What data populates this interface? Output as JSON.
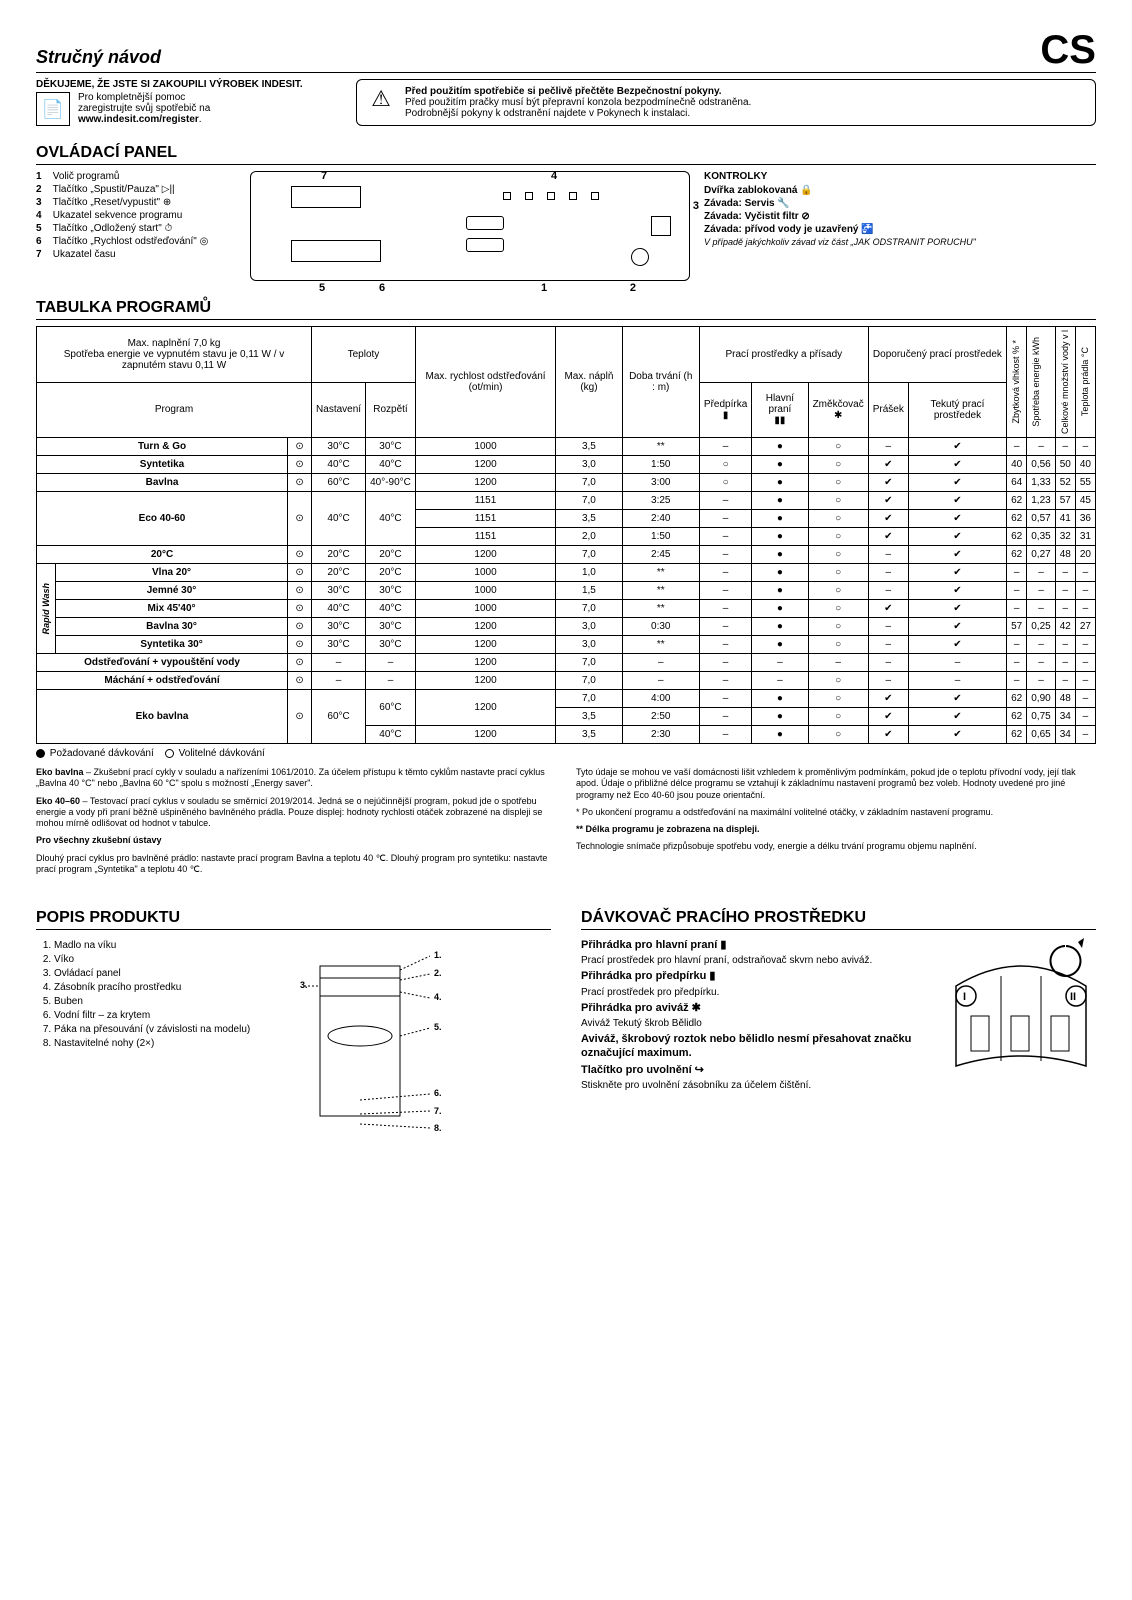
{
  "lang_code": "CS",
  "title": "Stručný návod",
  "intro": {
    "thanks": "DĚKUJEME, ŽE JSTE SI ZAKOUPILI VÝROBEK INDESIT.",
    "reg1": "Pro kompletnější pomoc",
    "reg2": "zaregistrujte svůj spotřebič na",
    "reg_url": "www.indesit.com/register",
    "warn_title": "Před použitím spotřebiče si pečlivě přečtěte Bezpečnostní pokyny.",
    "warn_line1": "Před použitím pračky musí být přepravní konzola bezpodmínečně odstraněna.",
    "warn_line2": "Podrobnější pokyny k odstranění najdete v Pokynech k instalaci."
  },
  "panel": {
    "heading": "OVLÁDACÍ PANEL",
    "items": [
      "Volič programů",
      "Tlačítko „Spustit/Pauza\" ▷||",
      "Tlačítko „Reset/vypustit\" ⊕",
      "Ukazatel sekvence programu",
      "Tlačítko „Odložený start\" ⏱",
      "Tlačítko „Rychlost odstřeďování\" ◎",
      "Ukazatel času"
    ],
    "indicators_heading": "KONTROLKY",
    "indicators": [
      "Dvířka zablokovaná 🔒",
      "Závada: Servis 🔧",
      "Závada: Vyčistit filtr ⊘",
      "Závada: přívod vody je uzavřený 🚰"
    ],
    "indicator_note": "V případě jakýchkoliv závad viz část „JAK ODSTRANIT PORUCHU\""
  },
  "table": {
    "heading": "TABULKA PROGRAMŮ",
    "caption_load": "Max. naplnění 7,0 kg",
    "caption_energy": "Spotřeba energie ve vypnutém stavu je 0,11 W / v zapnutém stavu 0,11 W",
    "col_program": "Program",
    "col_temps": "Teploty",
    "col_temp_set": "Nastavení",
    "col_temp_range": "Rozpětí",
    "col_spin": "Max. rychlost odstřeďování (ot/min)",
    "col_load": "Max. náplň (kg)",
    "col_dur": "Doba trvání (h : m)",
    "col_additives": "Prací prostředky a přísady",
    "col_prewash": "Předpírka",
    "col_main": "Hlavní praní",
    "col_softener": "Změkčovač",
    "col_recommended": "Doporučený prací prostředek",
    "col_powder": "Prášek",
    "col_liquid": "Tekutý prací prostředek",
    "col_humidity": "Zbytková vlhkost % *",
    "col_energy2": "Spotřeba energie kWh",
    "col_water": "Celkové množství vody v l",
    "col_temp_laundry": "Teplota prádla °C",
    "rapid_label": "Rapid Wash",
    "legend_required": "Požadované dávkování",
    "legend_optional": "Volitelné dávkování",
    "programs": [
      {
        "name": "Turn & Go",
        "bold": true,
        "tset": "30°C",
        "trange": "30°C",
        "spin": "1000",
        "load": "3,5",
        "dur": "**",
        "pre": "–",
        "main": "●",
        "soft": "○",
        "pow": "–",
        "liq": "✔",
        "hum": "–",
        "en": "–",
        "wat": "–",
        "tl": "–"
      },
      {
        "name": "Syntetika",
        "bold": true,
        "tset": "40°C",
        "trange": "40°C",
        "spin": "1200",
        "load": "3,0",
        "dur": "1:50",
        "pre": "○",
        "main": "●",
        "soft": "○",
        "pow": "✔",
        "liq": "✔",
        "hum": "40",
        "en": "0,56",
        "wat": "50",
        "tl": "40"
      },
      {
        "name": "Bavlna",
        "bold": true,
        "tset": "60°C",
        "trange": "40°-90°C",
        "spin": "1200",
        "load": "7,0",
        "dur": "3:00",
        "pre": "○",
        "main": "●",
        "soft": "○",
        "pow": "✔",
        "liq": "✔",
        "hum": "64",
        "en": "1,33",
        "wat": "52",
        "tl": "55"
      },
      {
        "name": "Eco 40-60",
        "bold": true,
        "rowspan": 3,
        "tset": "40°C",
        "trange": "40°C",
        "sub": [
          {
            "spin": "1151",
            "load": "7,0",
            "dur": "3:25",
            "pre": "–",
            "main": "●",
            "soft": "○",
            "pow": "✔",
            "liq": "✔",
            "hum": "62",
            "en": "1,23",
            "wat": "57",
            "tl": "45"
          },
          {
            "spin": "1151",
            "load": "3,5",
            "dur": "2:40",
            "pre": "–",
            "main": "●",
            "soft": "○",
            "pow": "✔",
            "liq": "✔",
            "hum": "62",
            "en": "0,57",
            "wat": "41",
            "tl": "36"
          },
          {
            "spin": "1151",
            "load": "2,0",
            "dur": "1:50",
            "pre": "–",
            "main": "●",
            "soft": "○",
            "pow": "✔",
            "liq": "✔",
            "hum": "62",
            "en": "0,35",
            "wat": "32",
            "tl": "31"
          }
        ]
      },
      {
        "name": "20°C",
        "bold": true,
        "tset": "20°C",
        "trange": "20°C",
        "spin": "1200",
        "load": "7,0",
        "dur": "2:45",
        "pre": "–",
        "main": "●",
        "soft": "○",
        "pow": "–",
        "liq": "✔",
        "hum": "62",
        "en": "0,27",
        "wat": "48",
        "tl": "20"
      },
      {
        "name": "Vlna 20°",
        "bold": true,
        "rapid": true,
        "tset": "20°C",
        "trange": "20°C",
        "spin": "1000",
        "load": "1,0",
        "dur": "**",
        "pre": "–",
        "main": "●",
        "soft": "○",
        "pow": "–",
        "liq": "✔",
        "hum": "–",
        "en": "–",
        "wat": "–",
        "tl": "–"
      },
      {
        "name": "Jemné 30°",
        "bold": true,
        "rapid": true,
        "tset": "30°C",
        "trange": "30°C",
        "spin": "1000",
        "load": "1,5",
        "dur": "**",
        "pre": "–",
        "main": "●",
        "soft": "○",
        "pow": "–",
        "liq": "✔",
        "hum": "–",
        "en": "–",
        "wat": "–",
        "tl": "–"
      },
      {
        "name": "Mix 45'40°",
        "bold": true,
        "rapid": true,
        "tset": "40°C",
        "trange": "40°C",
        "spin": "1000",
        "load": "7,0",
        "dur": "**",
        "pre": "–",
        "main": "●",
        "soft": "○",
        "pow": "✔",
        "liq": "✔",
        "hum": "–",
        "en": "–",
        "wat": "–",
        "tl": "–"
      },
      {
        "name": "Bavlna 30°",
        "bold": true,
        "rapid": true,
        "tset": "30°C",
        "trange": "30°C",
        "spin": "1200",
        "load": "3,0",
        "dur": "0:30",
        "pre": "–",
        "main": "●",
        "soft": "○",
        "pow": "–",
        "liq": "✔",
        "hum": "57",
        "en": "0,25",
        "wat": "42",
        "tl": "27"
      },
      {
        "name": "Syntetika 30°",
        "bold": true,
        "rapid": true,
        "tset": "30°C",
        "trange": "30°C",
        "spin": "1200",
        "load": "3,0",
        "dur": "**",
        "pre": "–",
        "main": "●",
        "soft": "○",
        "pow": "–",
        "liq": "✔",
        "hum": "–",
        "en": "–",
        "wat": "–",
        "tl": "–"
      },
      {
        "name": "Odstřeďování + vypouštění vody",
        "bold": true,
        "tset": "–",
        "trange": "–",
        "spin": "1200",
        "load": "7,0",
        "dur": "–",
        "pre": "–",
        "main": "–",
        "soft": "–",
        "pow": "–",
        "liq": "–",
        "hum": "–",
        "en": "–",
        "wat": "–",
        "tl": "–"
      },
      {
        "name": "Máchání + odstřeďování",
        "bold": true,
        "tset": "–",
        "trange": "–",
        "spin": "1200",
        "load": "7,0",
        "dur": "–",
        "pre": "–",
        "main": "–",
        "soft": "○",
        "pow": "–",
        "liq": "–",
        "hum": "–",
        "en": "–",
        "wat": "–",
        "tl": "–"
      },
      {
        "name": "Eko bavlna",
        "bold": true,
        "rowspan": 3,
        "tset": "60°C",
        "sub": [
          {
            "trange": "60°C",
            "spin": "1200",
            "load": "7,0",
            "dur": "4:00",
            "pre": "–",
            "main": "●",
            "soft": "○",
            "pow": "✔",
            "liq": "✔",
            "hum": "62",
            "en": "0,90",
            "wat": "48",
            "tl": "–"
          },
          {
            "trange": "60°C",
            "spin": "1200",
            "load": "3,5",
            "dur": "2:50",
            "pre": "–",
            "main": "●",
            "soft": "○",
            "pow": "✔",
            "liq": "✔",
            "hum": "62",
            "en": "0,75",
            "wat": "34",
            "tl": "–"
          },
          {
            "trange": "40°C",
            "spin": "1200",
            "load": "3,5",
            "dur": "2:30",
            "pre": "–",
            "main": "●",
            "soft": "○",
            "pow": "✔",
            "liq": "✔",
            "hum": "62",
            "en": "0,65",
            "wat": "34",
            "tl": "–"
          }
        ]
      }
    ]
  },
  "footnotes": {
    "left": [
      {
        "b": "Eko bavlna",
        "t": " – Zkušební prací cykly v souladu a nařízeními 1061/2010. Za účelem přístupu k těmto cyklům nastavte prací cyklus „Bavlna 40 °C\" nebo „Bavlna 60 °C\" spolu s možností „Energy saver\"."
      },
      {
        "b": "Eko 40–60",
        "t": " – Testovací prací cyklus v souladu se směrnicí 2019/2014. Jedná se o nejúčinnější program, pokud jde o spotřebu energie a vody při praní běžně ušpiněného bavlněného prádla. Pouze displej: hodnoty rychlosti otáček zobrazené na displeji se mohou mírně odlišovat od hodnot v tabulce."
      },
      {
        "b": "Pro všechny zkušební ústavy",
        "t": ""
      },
      {
        "b": "",
        "t": "Dlouhý prací cyklus pro bavlněné prádlo:  nastavte prací program Bavlna a teplotu 40 ℃. Dlouhý program pro syntetiku:  nastavte prací program „Syntetika\" a teplotu 40 ℃."
      }
    ],
    "right": [
      "Tyto údaje se mohou ve vaší domácnosti lišit vzhledem k proměnlivým podmínkám, pokud jde o teplotu přívodní vody, její tlak apod. Údaje o přibližné délce programu se vztahují k základnímu nastavení programů bez voleb. Hodnoty uvedené pro jiné programy než Eco 40-60 jsou pouze orientační.",
      "* Po ukončení programu a odstřeďování na maximální volitelné otáčky, v základním nastavení programu.",
      "** Délka programu je zobrazena na displeji.",
      "Technologie snímače přizpůsobuje spotřebu vody, energie a délku trvání programu objemu naplnění."
    ]
  },
  "product": {
    "heading": "POPIS PRODUKTU",
    "items": [
      "Madlo na víku",
      "Víko",
      "Ovládací panel",
      "Zásobník pracího prostředku",
      "Buben",
      "Vodní filtr – za krytem",
      "Páka na přesouvání (v závislosti na modelu)",
      "Nastavitelné nohy (2×)"
    ]
  },
  "dispenser": {
    "heading": "DÁVKOVAČ PRACÍHO PROSTŘEDKU",
    "comp1_title": "Přihrádka pro hlavní praní ▮",
    "comp1_text": "Prací prostředek pro hlavní praní, odstraňovač skvrn nebo aviváž.",
    "comp2_title": "Přihrádka pro předpírku ▮",
    "comp2_text": "Prací prostředek pro předpírku.",
    "comp3_title": "Přihrádka pro aviváž ✱",
    "comp3_text": "Aviváž Tekutý škrob Bělidlo",
    "comp_warning": "Aviváž, škrobový roztok nebo bělidlo nesmí přesahovat značku označující maximum.",
    "release_title": "Tlačítko pro uvolnění ↪",
    "release_text": "Stiskněte pro uvolnění zásobníku za účelem čištění."
  }
}
